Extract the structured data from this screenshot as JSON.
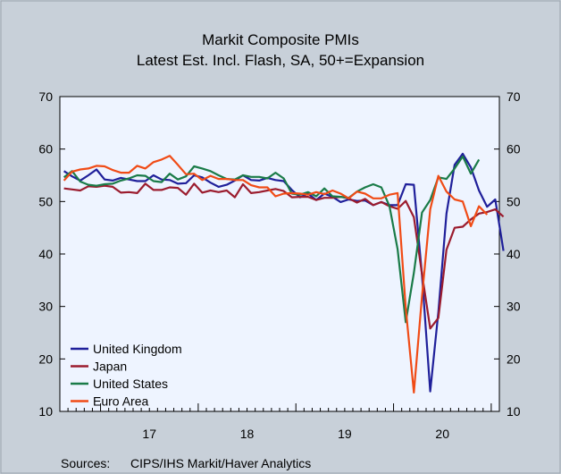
{
  "chart_data": {
    "type": "line",
    "title": "Markit Composite PMIs",
    "subtitle": "Latest Est. Incl. Flash, SA, 50+=Expansion",
    "ylim": [
      10,
      70
    ],
    "y_ticks": [
      10,
      20,
      30,
      40,
      50,
      60,
      70
    ],
    "x_start": "2016-08",
    "x_end": "2021-01",
    "year_labels": [
      {
        "label": "17",
        "period": "2017"
      },
      {
        "label": "18",
        "period": "2018"
      },
      {
        "label": "19",
        "period": "2019"
      },
      {
        "label": "20",
        "period": "2020"
      }
    ],
    "grid": false,
    "legend_position": "bottom-left",
    "series": [
      {
        "name": "United Kingdom",
        "color": "#1f1f9a",
        "start": "2016-08",
        "values": [
          55.8,
          54.8,
          54.0,
          55.0,
          56.1,
          54.2,
          54.0,
          54.5,
          54.2,
          53.9,
          53.9,
          55.0,
          54.2,
          54.1,
          53.4,
          53.5,
          55.0,
          54.6,
          53.6,
          52.8,
          53.2,
          54.0,
          55.0,
          54.1,
          54.0,
          54.5,
          54.1,
          53.9,
          52.2,
          50.8,
          51.5,
          50.3,
          51.5,
          50.9,
          49.9,
          50.4,
          50.1,
          50.2,
          49.3,
          49.9,
          49.3,
          49.3,
          53.3,
          53.2,
          36.0,
          13.8,
          28.9,
          47.7,
          57.0,
          59.1,
          56.5,
          52.1,
          49.0,
          50.4,
          40.6
        ]
      },
      {
        "name": "Japan",
        "color": "#9b1c2e",
        "start": "2016-08",
        "values": [
          52.5,
          52.3,
          52.1,
          52.9,
          52.8,
          53.0,
          52.8,
          51.7,
          51.8,
          51.6,
          53.4,
          52.2,
          52.2,
          52.7,
          52.6,
          51.3,
          53.4,
          51.7,
          52.1,
          51.8,
          52.1,
          50.8,
          53.3,
          51.6,
          51.8,
          52.1,
          52.4,
          52.0,
          50.8,
          50.9,
          50.9,
          50.3,
          50.7,
          50.7,
          50.9,
          50.6,
          49.8,
          50.5,
          49.3,
          49.9,
          49.1,
          48.6,
          50.1,
          47.0,
          36.2,
          25.8,
          27.8,
          40.8,
          45.0,
          45.2,
          46.6,
          47.7,
          48.0,
          48.5,
          47.1
        ]
      },
      {
        "name": "United States",
        "color": "#1a7b48",
        "start": "2016-08",
        "values": [
          54.6,
          55.8,
          53.8,
          53.2,
          53.0,
          53.3,
          53.4,
          54.0,
          54.4,
          55.0,
          54.9,
          53.9,
          53.7,
          55.3,
          54.2,
          54.8,
          56.7,
          56.3,
          55.8,
          55.0,
          54.3,
          54.2,
          55.0,
          54.7,
          54.7,
          54.4,
          55.5,
          54.4,
          51.5,
          51.3,
          51.8,
          51.0,
          52.5,
          51.0,
          50.9,
          50.7,
          51.9,
          52.7,
          53.3,
          52.7,
          49.1,
          40.9,
          27.0,
          36.4,
          47.9,
          50.3,
          54.6,
          54.3,
          56.3,
          58.6,
          55.3,
          58.0
        ]
      },
      {
        "name": "Euro Area",
        "color": "#f04b16",
        "start": "2016-08",
        "values": [
          54.0,
          55.7,
          56.1,
          56.3,
          56.8,
          56.7,
          56.0,
          55.5,
          55.5,
          56.8,
          56.3,
          57.5,
          58.0,
          58.7,
          57.0,
          55.2,
          55.3,
          54.1,
          54.9,
          54.3,
          54.3,
          54.1,
          54.1,
          53.1,
          52.7,
          52.7,
          51.0,
          51.5,
          51.6,
          51.5,
          51.3,
          51.8,
          51.4,
          52.1,
          51.5,
          50.6,
          51.9,
          51.5,
          50.6,
          50.6,
          51.3,
          51.6,
          29.7,
          13.6,
          31.9,
          48.5,
          54.9,
          51.9,
          50.4,
          50.0,
          45.3,
          49.1,
          47.5
        ]
      }
    ]
  },
  "footer": {
    "sources_label": "Sources:",
    "sources_text": "CIPS/IHS Markit/Haver Analytics"
  }
}
